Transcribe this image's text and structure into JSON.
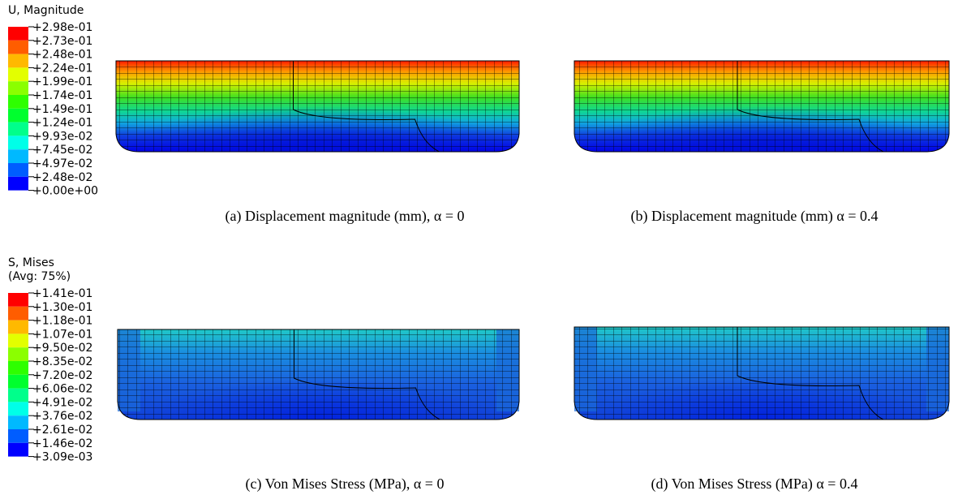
{
  "legends": [
    {
      "title": [
        "U, Magnitude"
      ],
      "labels": [
        "+2.98e-01",
        "+2.73e-01",
        "+2.48e-01",
        "+2.24e-01",
        "+1.99e-01",
        "+1.74e-01",
        "+1.49e-01",
        "+1.24e-01",
        "+9.93e-02",
        "+7.45e-02",
        "+4.97e-02",
        "+2.48e-02",
        "+0.00e+00"
      ]
    },
    {
      "title": [
        "S, Mises",
        "(Avg: 75%)"
      ],
      "labels": [
        "+1.41e-01",
        "+1.30e-01",
        "+1.18e-01",
        "+1.07e-01",
        "+9.50e-02",
        "+8.35e-02",
        "+7.20e-02",
        "+6.06e-02",
        "+4.91e-02",
        "+3.76e-02",
        "+2.61e-02",
        "+1.46e-02",
        "+3.09e-03"
      ]
    }
  ],
  "panels": [
    {
      "caption": "(a) Displacement magnitude (mm), α = 0"
    },
    {
      "caption": "(b) Displacement magnitude (mm) α = 0.4"
    },
    {
      "caption": "(c) Von Mises Stress (MPa), α = 0"
    },
    {
      "caption": "(d) Von Mises Stress (MPa) α = 0.4"
    }
  ]
}
